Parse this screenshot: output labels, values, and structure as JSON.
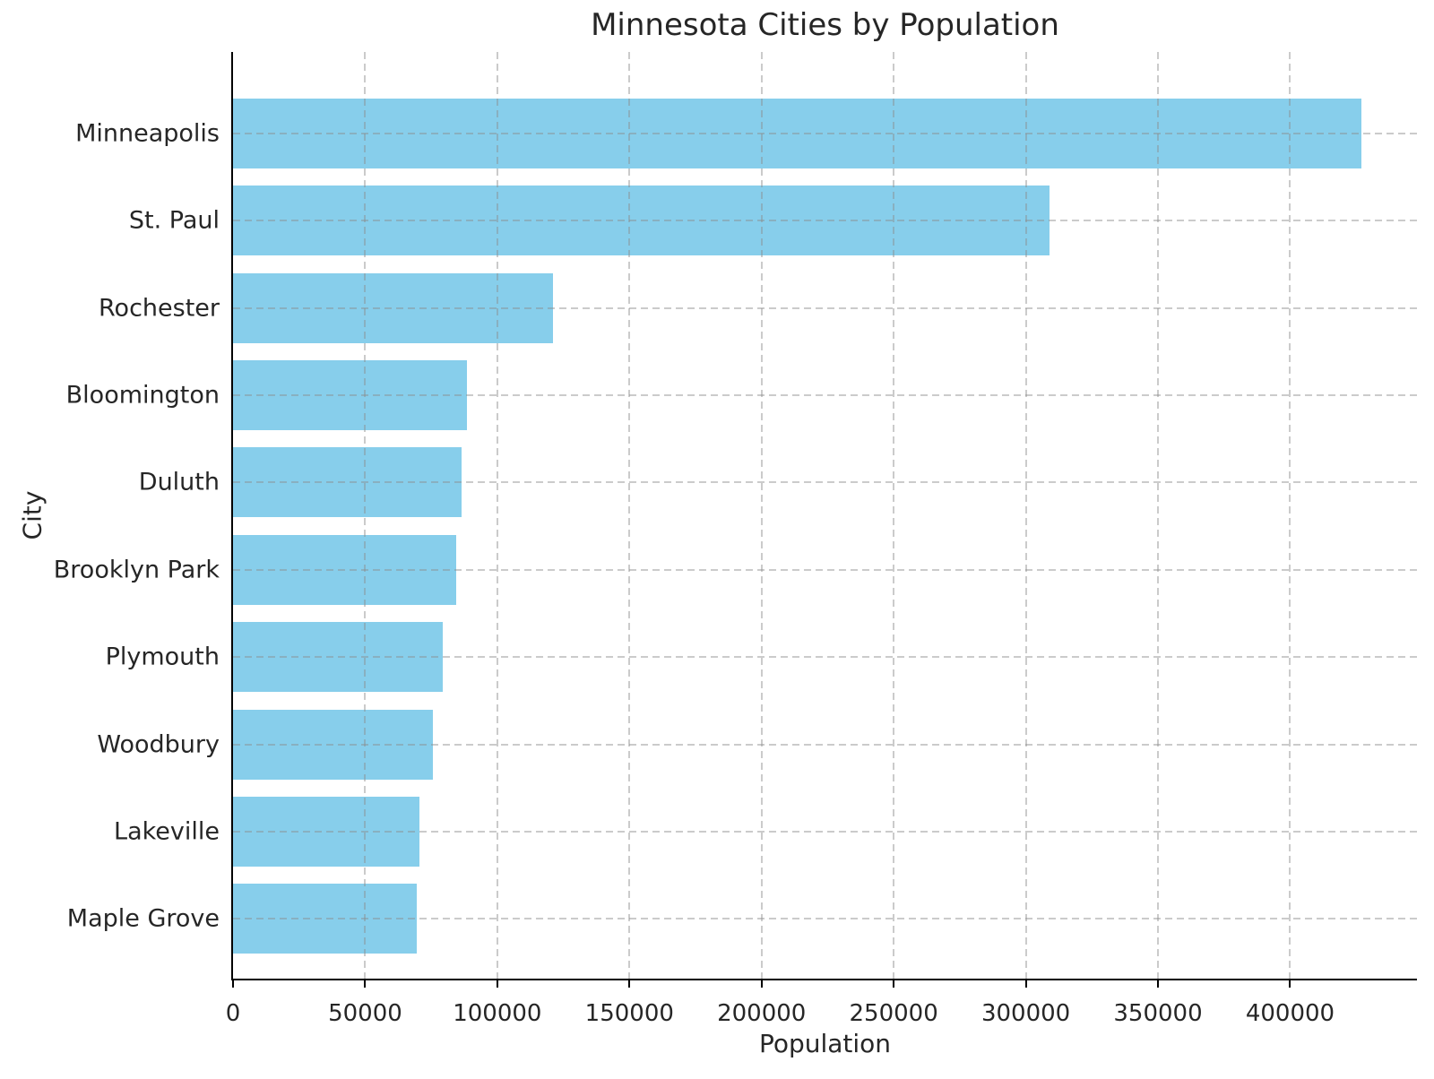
{
  "chart_data": {
    "type": "bar",
    "orientation": "horizontal",
    "title": "Minnesota Cities by Population",
    "xlabel": "Population",
    "ylabel": "City",
    "categories": [
      "Minneapolis",
      "St. Paul",
      "Rochester",
      "Bloomington",
      "Duluth",
      "Brooklyn Park",
      "Plymouth",
      "Woodbury",
      "Lakeville",
      "Maple Grove"
    ],
    "values": [
      427000,
      309000,
      121000,
      88500,
      86500,
      84500,
      79500,
      75500,
      70500,
      69500
    ],
    "x_ticks": [
      0,
      50000,
      100000,
      150000,
      200000,
      250000,
      300000,
      350000,
      400000
    ],
    "xlim": [
      0,
      448000
    ],
    "legend": "none",
    "grid": {
      "style": "dashed",
      "axes": "both",
      "drawn_over_bars": true
    },
    "colors": {
      "bar": "#87CEEB",
      "gridline": "#c8c8c8",
      "spine": "#000000",
      "text": "#262626",
      "background": "#ffffff"
    }
  }
}
